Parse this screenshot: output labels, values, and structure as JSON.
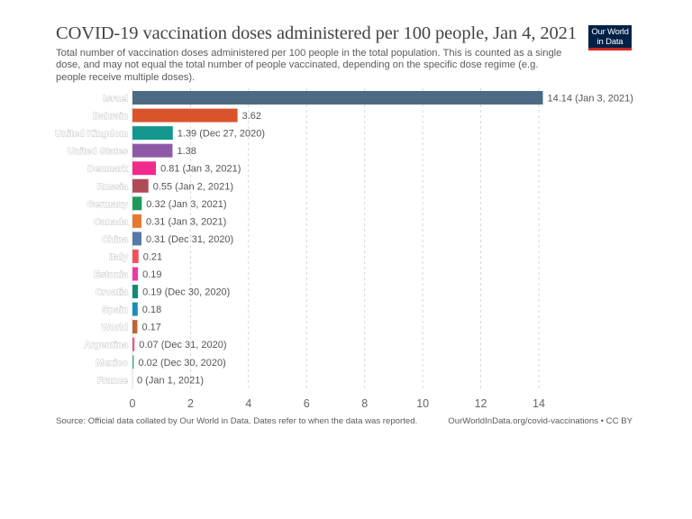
{
  "header": {
    "title": "COVID-19 vaccination doses administered per 100 people, Jan 4, 2021",
    "subtitle": "Total number of vaccination doses administered per 100 people in the total population. This is counted as a single\n dose, and may not equal the total number of people vaccinated, depending on the specific dose regime (e.g.\npeople receive multiple doses).",
    "logo_line1": "Our World",
    "logo_line2": "in Data",
    "logo_colors": {
      "background": "#002147",
      "underline": "#ce261e"
    }
  },
  "footer": {
    "source": "Source: Official data collated by Our World in Data. Dates refer to when the data was reported.",
    "url_license": "OurWorldInData.org/covid-vaccinations • CC BY"
  },
  "chart_data": {
    "type": "bar",
    "orientation": "horizontal",
    "title": "COVID-19 vaccination doses administered per 100 people, Jan 4, 2021",
    "xlabel": "",
    "ylabel": "",
    "xlim": [
      0,
      14
    ],
    "xticks": [
      0,
      2,
      4,
      6,
      8,
      10,
      12,
      14
    ],
    "grid": "vertical dashed",
    "categories": [
      "Israel",
      "Bahrain",
      "United Kingdom",
      "United States",
      "Denmark",
      "Russia",
      "Germany",
      "Canada",
      "China",
      "Italy",
      "Estonia",
      "Croatia",
      "Spain",
      "World",
      "Argentina",
      "Mexico",
      "France"
    ],
    "values": [
      14.14,
      3.62,
      1.39,
      1.38,
      0.81,
      0.55,
      0.32,
      0.31,
      0.31,
      0.21,
      0.19,
      0.19,
      0.18,
      0.17,
      0.07,
      0.02,
      0
    ],
    "value_labels": [
      "14.14 (Jan 3, 2021)",
      "3.62",
      "1.39 (Dec 27, 2020)",
      "1.38",
      "0.81 (Jan 3, 2021)",
      "0.55 (Jan 2, 2021)",
      "0.32 (Jan 3, 2021)",
      "0.31 (Jan 3, 2021)",
      "0.31 (Dec 31, 2020)",
      "0.21",
      "0.19",
      "0.19 (Dec 30, 2020)",
      "0.18",
      "0.17",
      "0.07 (Dec 31, 2020)",
      "0.02 (Dec 30, 2020)",
      "0 (Jan 1, 2021)"
    ],
    "colors": [
      "#4c6a84",
      "#d9542b",
      "#13968e",
      "#8e5aa8",
      "#f02a8a",
      "#b04a57",
      "#1f9a5a",
      "#e6792f",
      "#5679a9",
      "#f0535f",
      "#ea3ca5",
      "#14897a",
      "#1b8bb8",
      "#b86636",
      "#e35b7e",
      "#4caf9b",
      "#cccccc"
    ]
  }
}
